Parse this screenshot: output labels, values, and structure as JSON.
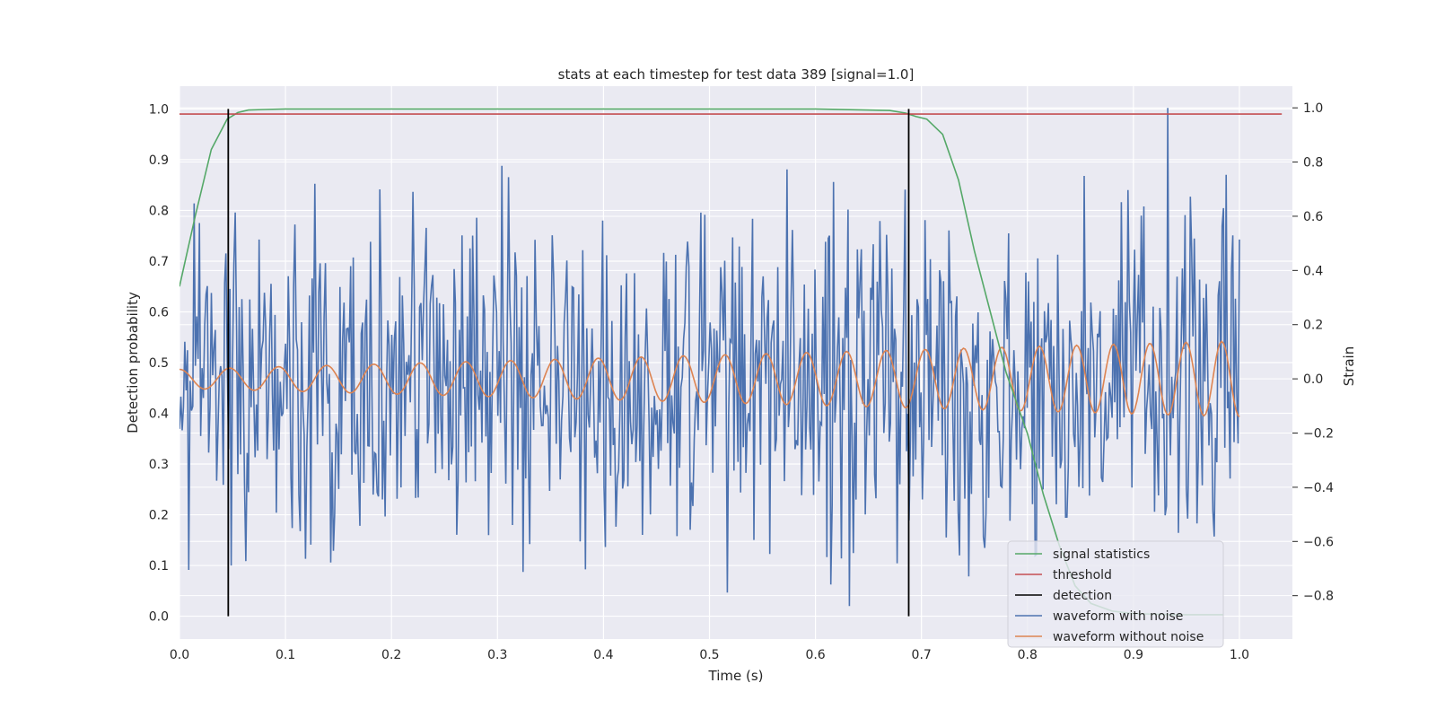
{
  "chart_data": {
    "type": "line",
    "title": "stats at each timestep for test data 389 [signal=1.0]",
    "xlabel": "Time (s)",
    "ylabel_left": "Detection probability",
    "ylabel_right": "Strain",
    "xlim": [
      0.0,
      1.05
    ],
    "ylim_left": [
      -0.045,
      1.045
    ],
    "ylim_right": [
      -0.96,
      1.08
    ],
    "x_ticks": [
      "0.0",
      "0.1",
      "0.2",
      "0.3",
      "0.4",
      "0.5",
      "0.6",
      "0.7",
      "0.8",
      "0.9",
      "1.0"
    ],
    "y_ticks_left": [
      "0.0",
      "0.1",
      "0.2",
      "0.3",
      "0.4",
      "0.5",
      "0.6",
      "0.7",
      "0.8",
      "0.9",
      "1.0"
    ],
    "y_ticks_right": [
      "−0.8",
      "−0.6",
      "−0.4",
      "−0.2",
      "0.0",
      "0.2",
      "0.4",
      "0.6",
      "0.8",
      "1.0"
    ],
    "grid": true,
    "legend_position": "bottom-right",
    "colors": {
      "background": "#eaeaf2",
      "grid": "#ffffff",
      "signal": "#55a868",
      "threshold": "#c44e52",
      "detection": "#000000",
      "noisy": "#4c72b0",
      "clean": "#dd8452"
    },
    "series": [
      {
        "name": "signal statistics",
        "axis": "left",
        "x": [
          0.0,
          0.015,
          0.03,
          0.045,
          0.055,
          0.065,
          0.08,
          0.1,
          0.2,
          0.3,
          0.4,
          0.5,
          0.6,
          0.67,
          0.685,
          0.695,
          0.705,
          0.72,
          0.735,
          0.75,
          0.765,
          0.78,
          0.8,
          0.815,
          0.83,
          0.845,
          0.86,
          0.88,
          0.9,
          0.94,
          0.985
        ],
        "y": [
          0.65,
          0.79,
          0.92,
          0.98,
          0.993,
          0.998,
          0.999,
          1.0,
          1.0,
          1.0,
          1.0,
          1.0,
          1.0,
          0.997,
          0.992,
          0.985,
          0.98,
          0.95,
          0.86,
          0.72,
          0.6,
          0.48,
          0.36,
          0.24,
          0.14,
          0.06,
          0.025,
          0.01,
          0.005,
          0.003,
          0.003
        ]
      },
      {
        "name": "threshold",
        "axis": "left",
        "x": [
          0.0,
          1.04
        ],
        "y": [
          0.99,
          0.99
        ]
      },
      {
        "name": "detection",
        "axis": "left",
        "segments": [
          {
            "x": 0.046,
            "y0": 0.0,
            "y1": 1.0
          },
          {
            "x": 0.688,
            "y0": 0.0,
            "y1": 1.0
          }
        ]
      },
      {
        "name": "waveform with noise",
        "axis": "right",
        "x_range": [
          0.0,
          1.0
        ],
        "samples": 800,
        "y_range": [
          -0.9,
          1.0
        ]
      },
      {
        "name": "waveform without noise",
        "axis": "right",
        "x_range": [
          0.0,
          1.0
        ],
        "amplitude_start": 0.035,
        "amplitude_end": 0.14,
        "frequency_start_hz": 21,
        "frequency_end_hz": 30
      }
    ]
  }
}
